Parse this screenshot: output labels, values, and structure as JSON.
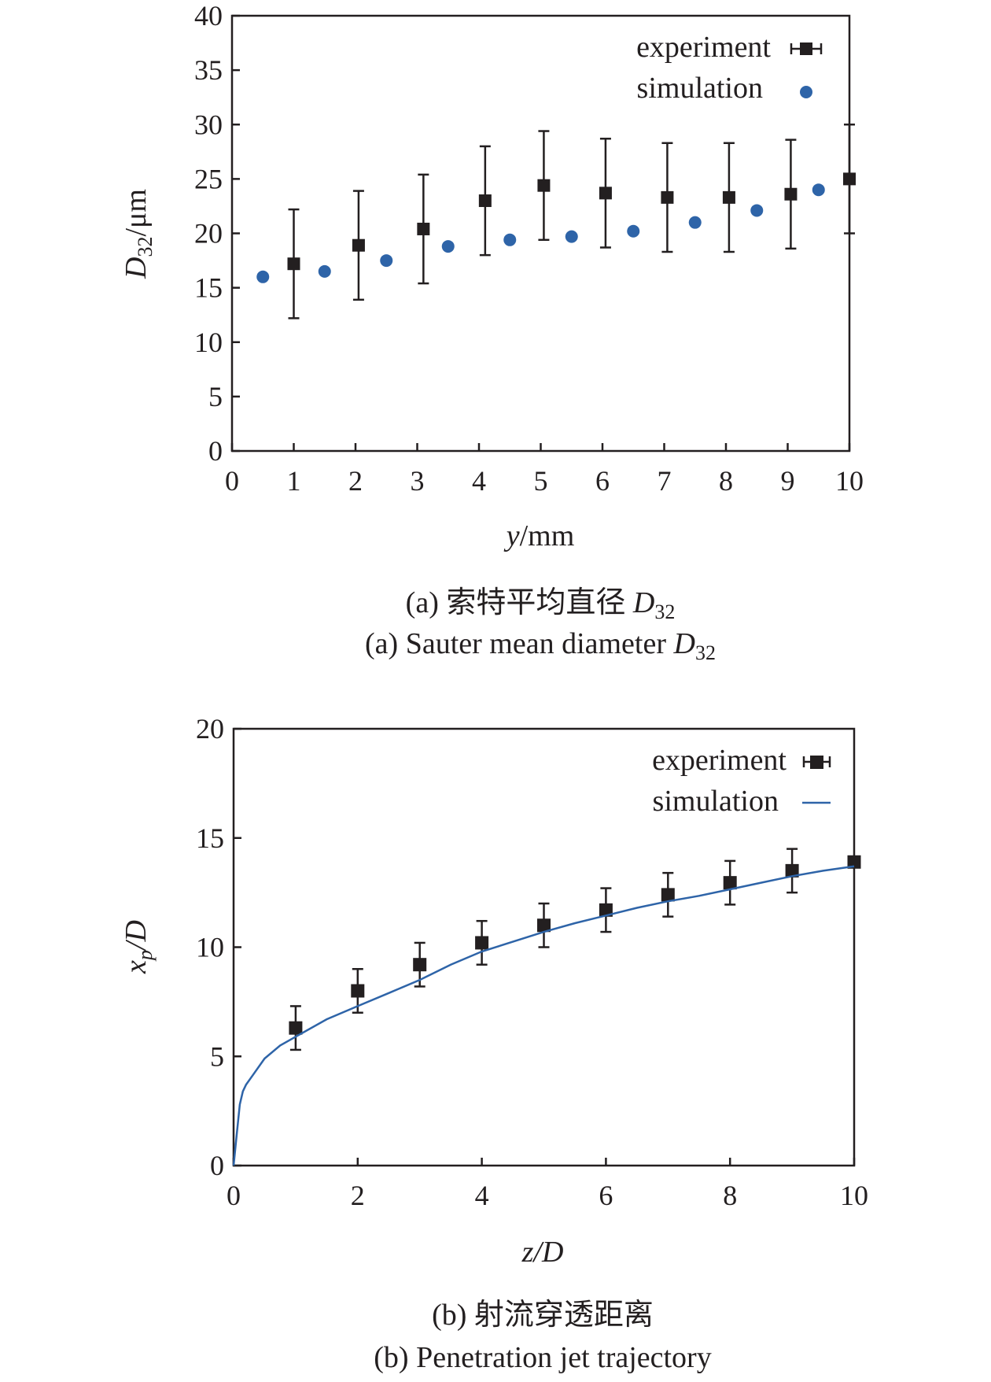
{
  "colors": {
    "experiment": "#231f20",
    "simulation": "#2e64a8",
    "axis": "#231f20"
  },
  "chart_data": [
    {
      "id": "a",
      "type": "scatter",
      "caption_cn": "(a) 索特平均直径 ",
      "caption_en": "(a) Sauter mean diameter ",
      "caption_sym": "D",
      "caption_sub": "32",
      "ylabel_main": "D",
      "ylabel_sub": "32",
      "ylabel_unit": "/μm",
      "xlabel_var": "y",
      "xlabel_unit": "/mm",
      "xlim": [
        0,
        10
      ],
      "ylim": [
        0,
        40
      ],
      "xticks": [
        0,
        1,
        2,
        3,
        4,
        5,
        6,
        7,
        8,
        9,
        10
      ],
      "yticks": [
        0,
        5,
        10,
        15,
        20,
        25,
        30,
        35,
        40
      ],
      "legend_position": "top-right",
      "series": [
        {
          "name": "experiment",
          "marker": "square",
          "x": [
            1.0,
            2.05,
            3.1,
            4.1,
            5.05,
            6.05,
            7.05,
            8.05,
            9.05,
            10.0
          ],
          "y": [
            17.2,
            18.9,
            20.4,
            23.0,
            24.4,
            23.7,
            23.3,
            23.3,
            23.6,
            25.0
          ],
          "error": [
            5,
            5,
            5,
            5,
            5,
            5,
            5,
            5,
            5,
            5
          ]
        },
        {
          "name": "simulation",
          "marker": "circle",
          "x": [
            0.5,
            1.5,
            2.5,
            3.5,
            4.5,
            5.5,
            6.5,
            7.5,
            8.5,
            9.5
          ],
          "y": [
            16.0,
            16.5,
            17.5,
            18.8,
            19.4,
            19.7,
            20.2,
            21.0,
            22.1,
            24.0
          ]
        }
      ]
    },
    {
      "id": "b",
      "type": "line",
      "caption_cn": "(b) 射流穿透距离",
      "caption_en": "(b) Penetration jet trajectory",
      "ylabel_main": "x",
      "ylabel_sub": "p",
      "ylabel_unit": "/D",
      "xlabel_var": "z",
      "xlabel_unit": "/D",
      "xlim": [
        0,
        10
      ],
      "ylim": [
        0,
        20
      ],
      "xticks": [
        0,
        2,
        4,
        6,
        8,
        10
      ],
      "yticks": [
        0,
        5,
        10,
        15,
        20
      ],
      "legend_position": "top-right",
      "series": [
        {
          "name": "experiment",
          "marker": "square",
          "x": [
            1,
            2,
            3,
            4,
            5,
            6,
            7,
            8,
            9,
            10
          ],
          "y": [
            6.3,
            8.0,
            9.2,
            10.2,
            11.0,
            11.7,
            12.4,
            12.95,
            13.5,
            13.9
          ],
          "error": [
            1,
            1,
            1,
            1,
            1,
            1,
            1,
            1,
            1,
            0
          ]
        },
        {
          "name": "simulation",
          "marker": "line",
          "x": [
            0,
            0.05,
            0.1,
            0.15,
            0.2,
            0.3,
            0.5,
            0.75,
            1.0,
            1.5,
            2.0,
            2.5,
            3.0,
            3.5,
            4.0,
            4.5,
            5.0,
            5.5,
            6.0,
            6.5,
            7.0,
            7.5,
            8.0,
            8.5,
            9.0,
            9.5,
            10.0
          ],
          "y": [
            0,
            1.4,
            2.8,
            3.4,
            3.7,
            4.1,
            4.9,
            5.5,
            5.9,
            6.7,
            7.3,
            7.9,
            8.5,
            9.2,
            9.8,
            10.25,
            10.7,
            11.1,
            11.45,
            11.8,
            12.1,
            12.35,
            12.65,
            12.95,
            13.25,
            13.5,
            13.7
          ]
        }
      ]
    }
  ]
}
